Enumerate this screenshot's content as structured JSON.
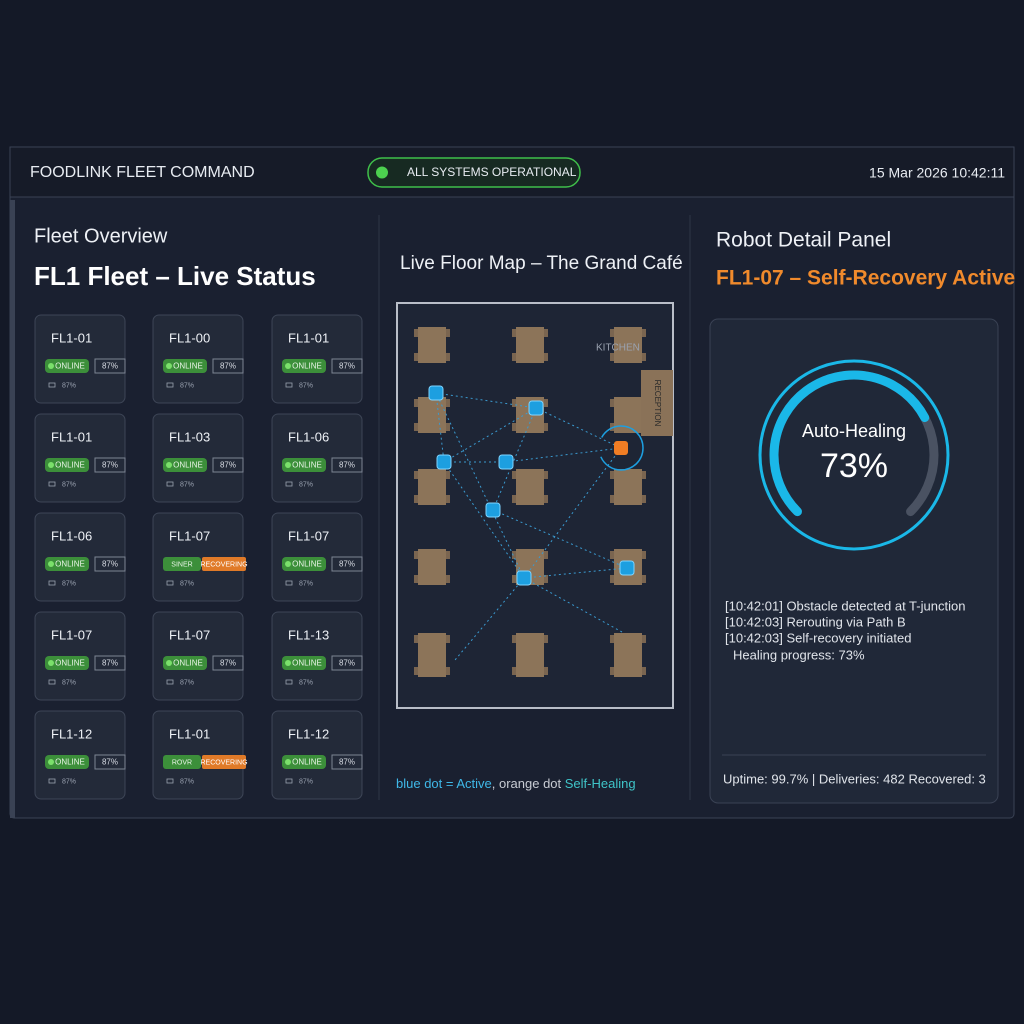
{
  "header": {
    "brand": "FOODLINK FLEET COMMAND",
    "status": "ALL SYSTEMS OPERATIONAL",
    "datetime": "15 Mar 2026 10:42:11"
  },
  "fleet": {
    "title": "Fleet Overview",
    "subtitle": "FL1 Fleet – Live Status",
    "cards": [
      {
        "id": "FL1-01",
        "status": "ONLINE",
        "battery": "87%",
        "footer": "87%"
      },
      {
        "id": "FL1-00",
        "status": "ONLINE",
        "battery": "87%",
        "footer": "87%"
      },
      {
        "id": "FL1-01",
        "status": "ONLINE",
        "battery": "87%",
        "footer": "87%"
      },
      {
        "id": "FL1-01",
        "status": "ONLINE",
        "battery": "87%",
        "footer": "87%"
      },
      {
        "id": "FL1-03",
        "status": "ONLINE",
        "battery": "87%",
        "footer": "87%"
      },
      {
        "id": "FL1-06",
        "status": "ONLINE",
        "battery": "87%",
        "footer": "87%"
      },
      {
        "id": "FL1-06",
        "status": "ONLINE",
        "battery": "87%",
        "footer": "87%"
      },
      {
        "id": "FL1-07",
        "status": "SINER",
        "alert": "RECOVERING",
        "footer": "87%"
      },
      {
        "id": "FL1-07",
        "status": "ONLINE",
        "battery": "87%",
        "footer": "87%"
      },
      {
        "id": "FL1-07",
        "status": "ONLINE",
        "battery": "87%",
        "footer": "87%"
      },
      {
        "id": "FL1-07",
        "status": "ONLINE",
        "battery": "87%",
        "footer": "87%"
      },
      {
        "id": "FL1-13",
        "status": "ONLINE",
        "battery": "87%",
        "footer": "87%"
      },
      {
        "id": "FL1-12",
        "status": "ONLINE",
        "battery": "87%",
        "footer": "87%"
      },
      {
        "id": "FL1-01",
        "status": "ROVR",
        "alert": "RECOVERING",
        "footer": "87%"
      },
      {
        "id": "FL1-12",
        "status": "ONLINE",
        "battery": "87%",
        "footer": "87%"
      }
    ]
  },
  "map": {
    "title": "Live Floor Map – The Grand Café",
    "kitchen": "KITCHEN",
    "reception": "RECEPTION",
    "legend": [
      "blue dot = Active",
      ", orange dot ",
      "Self-Healing"
    ]
  },
  "detail": {
    "title": "Robot Detail Panel",
    "robot": "FL1-07 – Self-Recovery Active",
    "gauge": {
      "label": "Auto-Healing",
      "value": 73,
      "value_label": "73%"
    },
    "log": [
      "[10:42:01] Obstacle detected at T-junction",
      "[10:42:03] Rerouting via Path B",
      "[10:42:03] Self-recovery initiated",
      "Healing progress: 73%"
    ],
    "footer": "Uptime: 99.7% | Deliveries: 482 Recovered: 3"
  }
}
